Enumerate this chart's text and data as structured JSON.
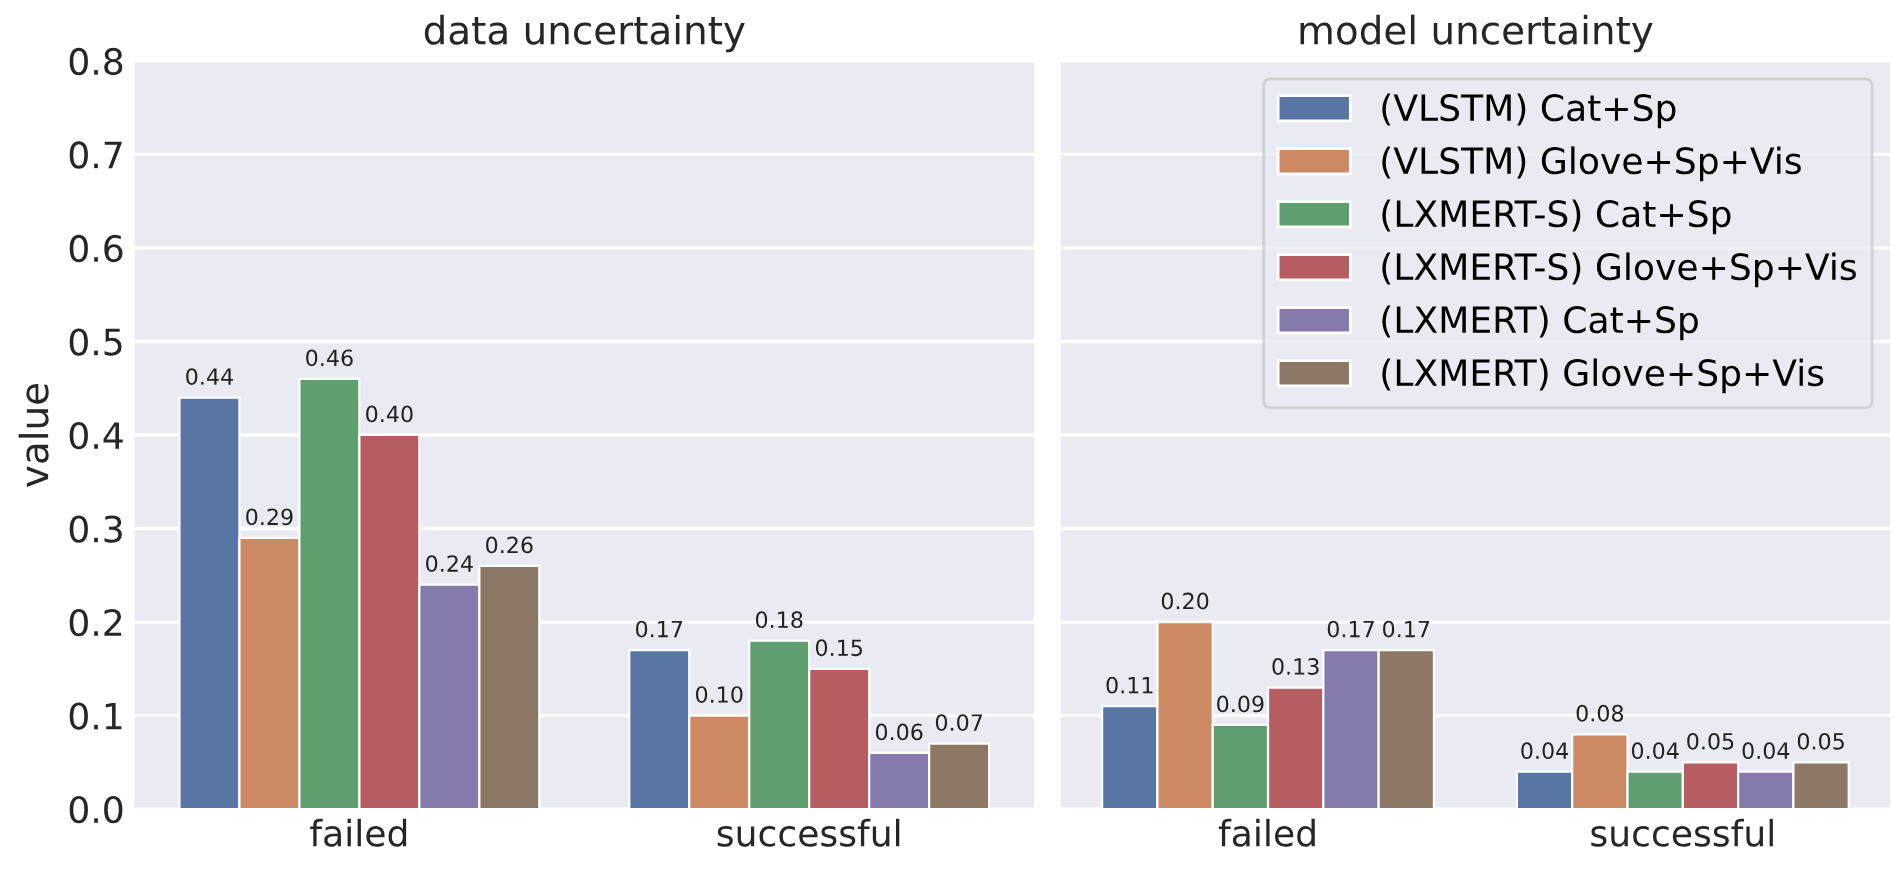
{
  "chart_data": [
    {
      "type": "bar",
      "title": "data uncertainty",
      "ylabel": "value",
      "categories": [
        "failed",
        "successful"
      ],
      "ylim": [
        0,
        0.8
      ],
      "yticks": [
        {
          "value": 0,
          "label": "0.0"
        },
        {
          "value": 0.1,
          "label": "0.1"
        },
        {
          "value": 0.2,
          "label": "0.2"
        },
        {
          "value": 0.3,
          "label": "0.3"
        },
        {
          "value": 0.4,
          "label": "0.4"
        },
        {
          "value": 0.5,
          "label": "0.5"
        },
        {
          "value": 0.6,
          "label": "0.6"
        },
        {
          "value": 0.7,
          "label": "0.7"
        },
        {
          "value": 0.8,
          "label": "0.8"
        }
      ],
      "grid": "y",
      "series": [
        {
          "color": "#5975a4",
          "values": [
            0.44,
            0.17
          ],
          "value_labels": [
            "0.44",
            "0.17"
          ]
        },
        {
          "color": "#cc8963",
          "values": [
            0.29,
            0.1
          ],
          "value_labels": [
            "0.29",
            "0.10"
          ]
        },
        {
          "color": "#5f9e6e",
          "values": [
            0.46,
            0.18
          ],
          "value_labels": [
            "0.46",
            "0.18"
          ]
        },
        {
          "color": "#b55d60",
          "values": [
            0.4,
            0.15
          ],
          "value_labels": [
            "0.40",
            "0.15"
          ]
        },
        {
          "color": "#857aab",
          "values": [
            0.24,
            0.06
          ],
          "value_labels": [
            "0.24",
            "0.06"
          ]
        },
        {
          "color": "#8d7866",
          "values": [
            0.26,
            0.07
          ],
          "value_labels": [
            "0.26",
            "0.07"
          ]
        }
      ]
    },
    {
      "type": "bar",
      "title": "model uncertainty",
      "categories": [
        "failed",
        "successful"
      ],
      "ylim": [
        0,
        0.8
      ],
      "yticks": [
        {
          "value": 0,
          "label": null
        },
        {
          "value": 0.1,
          "label": null
        },
        {
          "value": 0.2,
          "label": null
        },
        {
          "value": 0.3,
          "label": null
        },
        {
          "value": 0.4,
          "label": null
        },
        {
          "value": 0.5,
          "label": null
        },
        {
          "value": 0.6,
          "label": null
        },
        {
          "value": 0.7,
          "label": null
        },
        {
          "value": 0.8,
          "label": null
        }
      ],
      "grid": "y",
      "legend": "top right",
      "tick_labels": "x",
      "series": [
        {
          "name": "(VLSTM) Cat+Sp",
          "color": "#5975a4",
          "values": [
            0.11,
            0.04
          ],
          "value_labels": [
            "0.11",
            "0.04"
          ]
        },
        {
          "name": "(VLSTM) Glove+Sp+Vis",
          "color": "#cc8963",
          "values": [
            0.2,
            0.08
          ],
          "value_labels": [
            "0.20",
            "0.08"
          ]
        },
        {
          "name": "(LXMERT-S) Cat+Sp",
          "color": "#5f9e6e",
          "values": [
            0.09,
            0.04
          ],
          "value_labels": [
            "0.09",
            "0.04"
          ]
        },
        {
          "name": "(LXMERT-S) Glove+Sp+Vis",
          "color": "#b55d60",
          "values": [
            0.13,
            0.05
          ],
          "value_labels": [
            "0.13",
            "0.05"
          ]
        },
        {
          "name": "(LXMERT) Cat+Sp",
          "color": "#857aab",
          "values": [
            0.17,
            0.04
          ],
          "value_labels": [
            "0.17",
            "0.04"
          ]
        },
        {
          "name": "(LXMERT) Glove+Sp+Vis",
          "color": "#8d7866",
          "values": [
            0.17,
            0.05
          ],
          "value_labels": [
            "0.17",
            "0.05"
          ]
        }
      ]
    }
  ]
}
